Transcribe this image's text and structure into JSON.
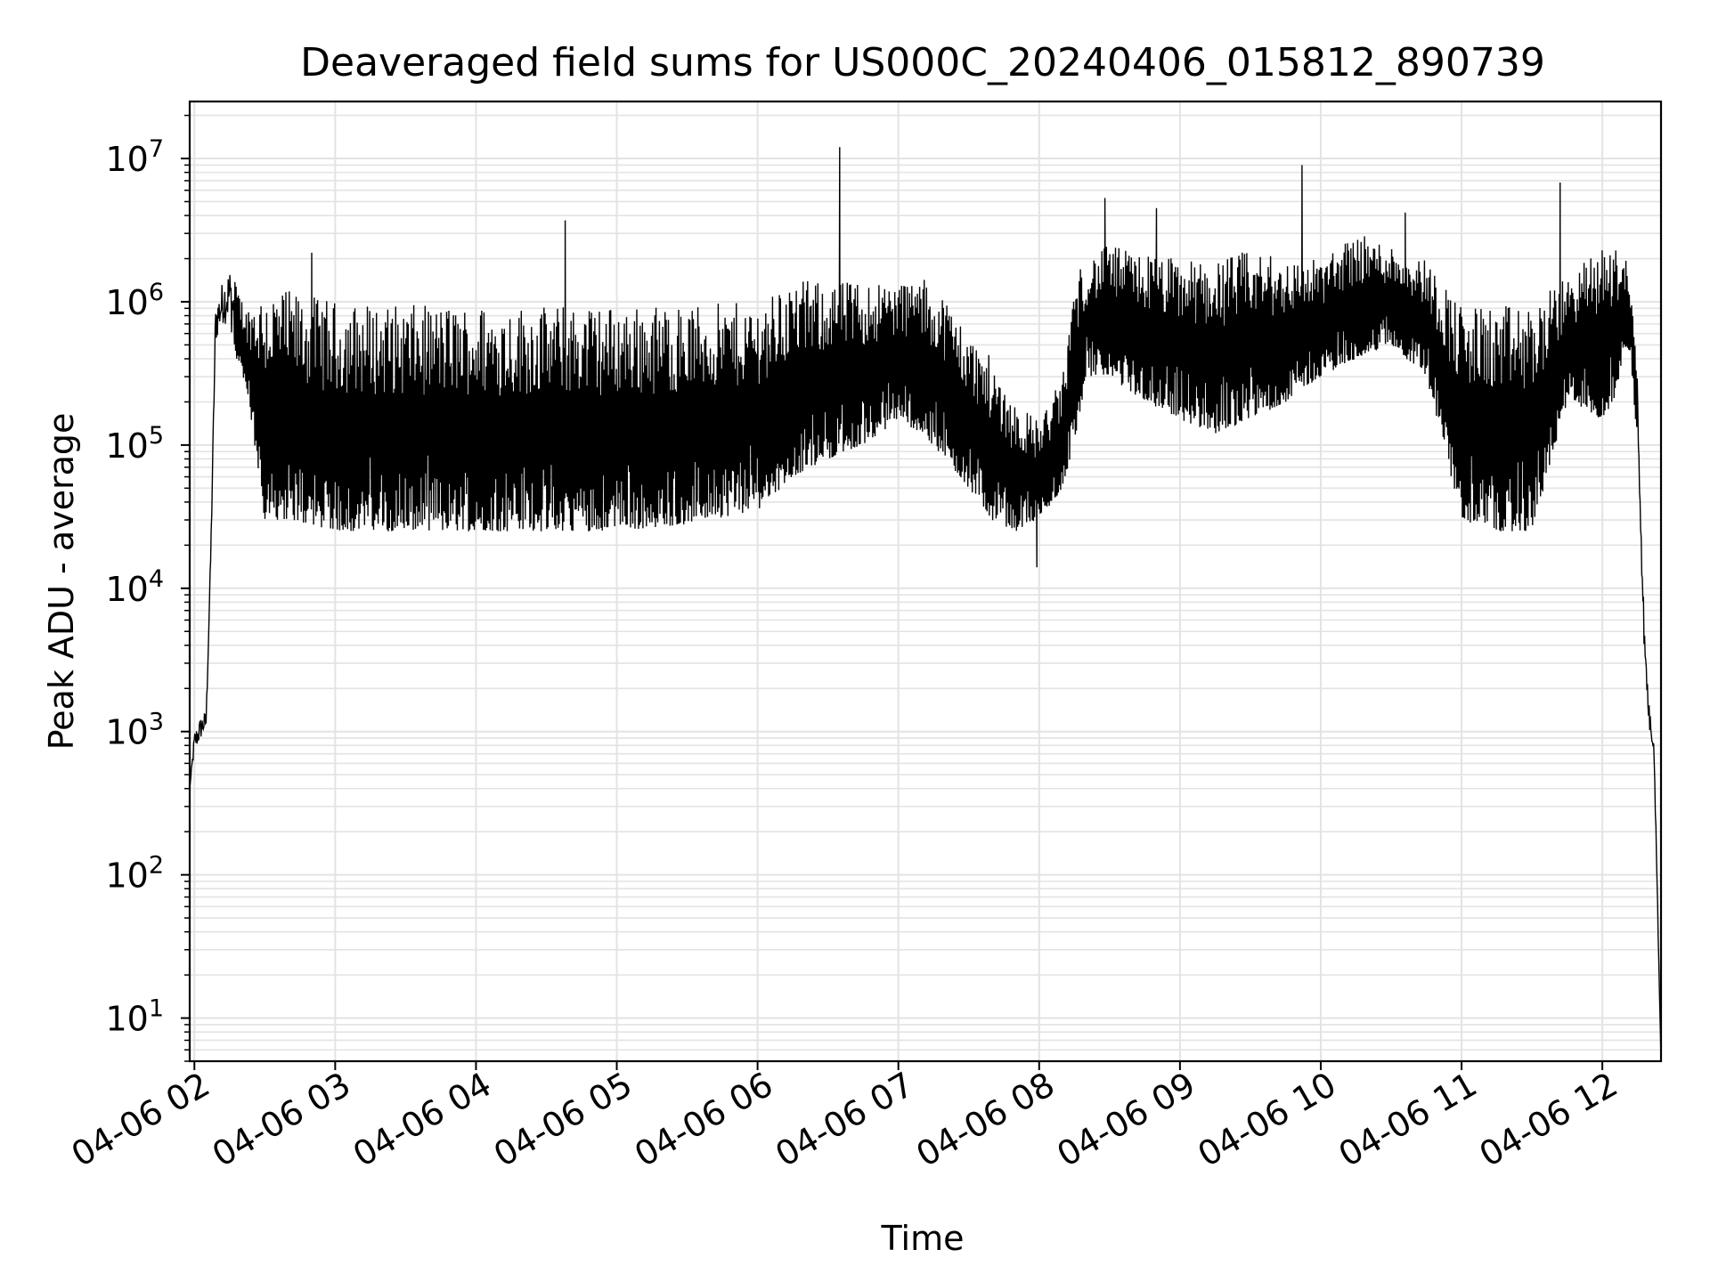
{
  "chart_data": {
    "type": "line",
    "title": "Deaveraged field sums for US000C_20240406_015812_890739",
    "xlabel": "Time",
    "ylabel": "Peak ADU - average",
    "yscale": "log",
    "xlim": [
      "04-06 01:58",
      "04-06 12:25"
    ],
    "ylim": [
      5,
      25000000
    ],
    "grid": true,
    "line_color": "#000000",
    "x_ticks": [
      "04-06 02",
      "04-06 03",
      "04-06 04",
      "04-06 05",
      "04-06 06",
      "04-06 07",
      "04-06 08",
      "04-06 09",
      "04-06 10",
      "04-06 11",
      "04-06 12"
    ],
    "y_ticks": [
      {
        "base": "10",
        "exp": "1"
      },
      {
        "base": "10",
        "exp": "2"
      },
      {
        "base": "10",
        "exp": "3"
      },
      {
        "base": "10",
        "exp": "4"
      },
      {
        "base": "10",
        "exp": "5"
      },
      {
        "base": "10",
        "exp": "6"
      },
      {
        "base": "10",
        "exp": "7"
      }
    ],
    "envelope": {
      "description_note": "",
      "x": [
        "04-06 01:58",
        "04-06 02:00",
        "04-06 02:03",
        "04-06 02:05",
        "04-06 02:07",
        "04-06 02:09",
        "04-06 02:12",
        "04-06 02:15",
        "04-06 02:18",
        "04-06 02:22",
        "04-06 02:30",
        "04-06 02:40",
        "04-06 03:00",
        "04-06 03:30",
        "04-06 04:00",
        "04-06 04:30",
        "04-06 05:00",
        "04-06 05:30",
        "04-06 06:00",
        "04-06 06:15",
        "04-06 06:30",
        "04-06 06:45",
        "04-06 07:00",
        "04-06 07:10",
        "04-06 07:20",
        "04-06 07:30",
        "04-06 07:40",
        "04-06 07:50",
        "04-06 08:00",
        "04-06 08:10",
        "04-06 08:15",
        "04-06 08:20",
        "04-06 08:30",
        "04-06 08:45",
        "04-06 09:00",
        "04-06 09:15",
        "04-06 09:30",
        "04-06 09:45",
        "04-06 10:00",
        "04-06 10:15",
        "04-06 10:30",
        "04-06 10:45",
        "04-06 11:00",
        "04-06 11:15",
        "04-06 11:30",
        "04-06 11:45",
        "04-06 12:00",
        "04-06 12:05",
        "04-06 12:10",
        "04-06 12:12",
        "04-06 12:15",
        "04-06 12:18",
        "04-06 12:20",
        "04-06 12:22",
        "04-06 12:25"
      ],
      "upper": [
        400,
        1000,
        1300,
        1400,
        20000,
        1000000,
        1400000,
        1800000,
        1300000,
        900000,
        1300000,
        1200000,
        1000000,
        950000,
        950000,
        950000,
        950000,
        950000,
        1000000,
        1400000,
        1400000,
        1400000,
        1400000,
        1500000,
        1100000,
        600000,
        400000,
        200000,
        150000,
        300000,
        1500000,
        2000000,
        2500000,
        2200000,
        2000000,
        2000000,
        2300000,
        2000000,
        2000000,
        3000000,
        2500000,
        2000000,
        950000,
        950000,
        950000,
        1500000,
        2500000,
        2500000,
        2000000,
        1500000,
        300000,
        5000,
        1500,
        1000,
        5
      ],
      "lower": [
        400,
        700,
        900,
        1000,
        15000,
        500000,
        700000,
        700000,
        400000,
        250000,
        30000,
        30000,
        25000,
        25000,
        25000,
        25000,
        25000,
        28000,
        35000,
        60000,
        80000,
        100000,
        150000,
        120000,
        80000,
        50000,
        30000,
        25000,
        30000,
        50000,
        100000,
        300000,
        300000,
        200000,
        150000,
        120000,
        150000,
        200000,
        300000,
        400000,
        500000,
        300000,
        30000,
        25000,
        25000,
        200000,
        150000,
        200000,
        500000,
        400000,
        100000,
        3000,
        1000,
        700,
        5
      ]
    },
    "annotations": [
      {
        "x": "04-06 02:50",
        "y": 2200000
      },
      {
        "x": "04-06 04:38",
        "y": 3700000
      },
      {
        "x": "04-06 06:35",
        "y": 12000000
      },
      {
        "x": "04-06 08:28",
        "y": 5300000
      },
      {
        "x": "04-06 08:50",
        "y": 4500000
      },
      {
        "x": "04-06 09:52",
        "y": 9000000
      },
      {
        "x": "04-06 10:36",
        "y": 4200000
      },
      {
        "x": "04-06 11:42",
        "y": 6800000
      },
      {
        "x": "04-06 07:59",
        "y": 14000
      }
    ]
  }
}
